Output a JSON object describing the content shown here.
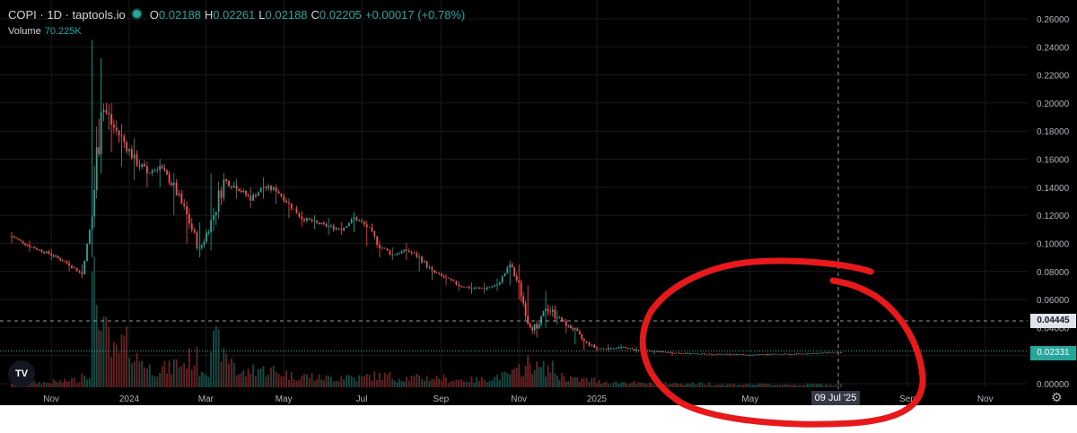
{
  "header": {
    "symbol_line": "COPI · 1D · taptools.io",
    "ohlc": [
      {
        "key": "O",
        "value": "0.02188"
      },
      {
        "key": "H",
        "value": "0.02261"
      },
      {
        "key": "L",
        "value": "0.02188"
      },
      {
        "key": "C",
        "value": "0.02205"
      }
    ],
    "change": "+0.00017 (+0.78%)",
    "volume_label": "Volume",
    "volume_value": "70.225K"
  },
  "price_axis": {
    "ticks": [
      "0.26000",
      "0.24000",
      "0.22000",
      "0.20000",
      "0.18000",
      "0.16000",
      "0.14000",
      "0.12000",
      "0.10000",
      "0.08000",
      "0.06000",
      "0.04000",
      "0.02000",
      "0.00000"
    ],
    "hover_price": "0.04445",
    "last_price": "0.02331"
  },
  "time_axis": {
    "labels": [
      "Nov",
      "2024",
      "Mar",
      "May",
      "Jul",
      "Sep",
      "Nov",
      "2025",
      "May",
      "Sep",
      "Nov"
    ],
    "hover_date": "09 Jul '25"
  },
  "colors": {
    "up": "#26a69a",
    "down": "#ef5350",
    "background": "#000000",
    "annotation": "#e8191a"
  },
  "logo": "TV",
  "icons": {
    "settings": "gear-icon"
  },
  "chart_data": {
    "type": "candlestick",
    "title": "COPI · 1D · taptools.io",
    "ylim": [
      0,
      0.26
    ],
    "grid": true,
    "x": [
      "2023-10-01",
      "2023-10-15",
      "2023-11-01",
      "2023-11-15",
      "2023-11-25",
      "2023-12-03",
      "2023-12-10",
      "2023-12-18",
      "2023-12-26",
      "2024-01-05",
      "2024-01-15",
      "2024-01-25",
      "2024-02-05",
      "2024-02-15",
      "2024-02-25",
      "2024-03-05",
      "2024-03-15",
      "2024-03-25",
      "2024-04-05",
      "2024-04-15",
      "2024-04-25",
      "2024-05-05",
      "2024-05-15",
      "2024-05-25",
      "2024-06-05",
      "2024-06-15",
      "2024-06-25",
      "2024-07-05",
      "2024-07-15",
      "2024-07-25",
      "2024-08-05",
      "2024-08-15",
      "2024-08-25",
      "2024-09-05",
      "2024-09-15",
      "2024-09-25",
      "2024-10-05",
      "2024-10-15",
      "2024-10-25",
      "2024-11-01",
      "2024-11-08",
      "2024-11-15",
      "2024-11-22",
      "2024-12-01",
      "2024-12-08",
      "2024-12-15",
      "2024-12-22",
      "2025-01-01",
      "2025-01-10",
      "2025-01-20",
      "2025-02-01",
      "2025-02-15",
      "2025-03-01",
      "2025-03-15",
      "2025-04-01",
      "2025-04-15",
      "2025-05-01",
      "2025-05-15",
      "2025-06-01",
      "2025-06-15",
      "2025-07-01",
      "2025-07-09"
    ],
    "close": [
      0.105,
      0.098,
      0.092,
      0.085,
      0.078,
      0.12,
      0.2,
      0.185,
      0.175,
      0.16,
      0.15,
      0.155,
      0.14,
      0.12,
      0.095,
      0.115,
      0.145,
      0.14,
      0.132,
      0.14,
      0.138,
      0.128,
      0.118,
      0.115,
      0.112,
      0.11,
      0.118,
      0.112,
      0.098,
      0.092,
      0.095,
      0.09,
      0.08,
      0.075,
      0.07,
      0.068,
      0.068,
      0.07,
      0.085,
      0.07,
      0.045,
      0.038,
      0.055,
      0.048,
      0.042,
      0.038,
      0.03,
      0.025,
      0.025,
      0.026,
      0.024,
      0.023,
      0.022,
      0.0215,
      0.021,
      0.021,
      0.0205,
      0.021,
      0.021,
      0.0215,
      0.022,
      0.02205
    ],
    "high": [
      0.108,
      0.102,
      0.096,
      0.088,
      0.085,
      0.245,
      0.232,
      0.2,
      0.185,
      0.175,
      0.158,
      0.16,
      0.15,
      0.13,
      0.115,
      0.15,
      0.15,
      0.146,
      0.14,
      0.147,
      0.142,
      0.132,
      0.123,
      0.12,
      0.118,
      0.115,
      0.122,
      0.116,
      0.102,
      0.097,
      0.1,
      0.093,
      0.084,
      0.078,
      0.073,
      0.072,
      0.072,
      0.075,
      0.088,
      0.085,
      0.07,
      0.045,
      0.066,
      0.052,
      0.046,
      0.04,
      0.032,
      0.027,
      0.028,
      0.028,
      0.026,
      0.024,
      0.023,
      0.022,
      0.0215,
      0.0215,
      0.021,
      0.0215,
      0.0215,
      0.022,
      0.0226,
      0.02261
    ],
    "low": [
      0.1,
      0.094,
      0.088,
      0.08,
      0.075,
      0.09,
      0.15,
      0.165,
      0.155,
      0.145,
      0.14,
      0.14,
      0.12,
      0.1,
      0.09,
      0.095,
      0.13,
      0.132,
      0.125,
      0.132,
      0.128,
      0.118,
      0.112,
      0.11,
      0.106,
      0.106,
      0.108,
      0.098,
      0.09,
      0.088,
      0.088,
      0.08,
      0.074,
      0.07,
      0.066,
      0.064,
      0.064,
      0.066,
      0.07,
      0.06,
      0.042,
      0.033,
      0.04,
      0.042,
      0.036,
      0.028,
      0.024,
      0.023,
      0.023,
      0.024,
      0.022,
      0.021,
      0.02,
      0.0205,
      0.02,
      0.02,
      0.0198,
      0.02,
      0.0203,
      0.021,
      0.0215,
      0.02188
    ],
    "volume_relative": [
      0.05,
      0.05,
      0.06,
      0.08,
      0.15,
      1.0,
      0.55,
      0.35,
      0.45,
      0.3,
      0.2,
      0.2,
      0.25,
      0.3,
      0.2,
      0.45,
      0.3,
      0.15,
      0.2,
      0.18,
      0.15,
      0.12,
      0.12,
      0.1,
      0.1,
      0.12,
      0.1,
      0.12,
      0.12,
      0.1,
      0.1,
      0.1,
      0.1,
      0.08,
      0.08,
      0.08,
      0.1,
      0.12,
      0.15,
      0.2,
      0.25,
      0.2,
      0.2,
      0.12,
      0.1,
      0.08,
      0.08,
      0.06,
      0.05,
      0.05,
      0.04,
      0.04,
      0.04,
      0.04,
      0.03,
      0.03,
      0.03,
      0.03,
      0.03,
      0.03,
      0.03,
      0.03
    ],
    "annotation": "hand-drawn red circle around the flat price action from Mar 2025 to Jul 2025"
  }
}
